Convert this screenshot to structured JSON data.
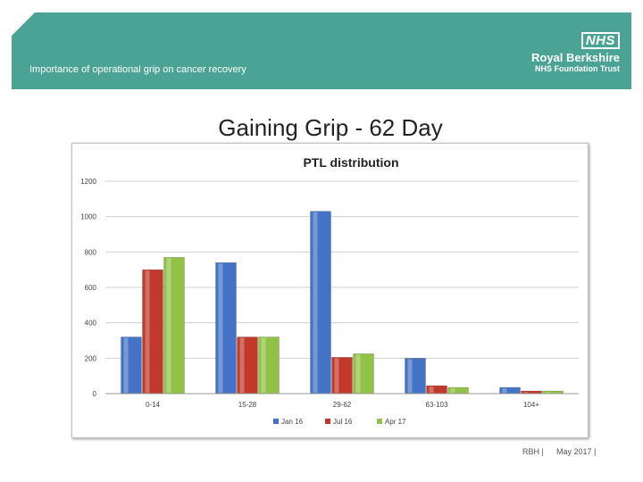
{
  "header": {
    "subtitle": "Importance of operational grip on cancer recovery",
    "logo_badge": "NHS",
    "logo_name": "Royal Berkshire",
    "logo_sub": "NHS Foundation Trust",
    "banner_color": "#4aa394"
  },
  "slide": {
    "title": "Gaining Grip - 62 Day"
  },
  "chart_data": {
    "type": "bar",
    "title": "PTL distribution",
    "categories": [
      "0-14",
      "15-28",
      "29-62",
      "63-103",
      "104+"
    ],
    "series": [
      {
        "name": "Jan 16",
        "color": "#4472c4",
        "values": [
          320,
          740,
          1030,
          200,
          35
        ]
      },
      {
        "name": "Jul 16",
        "color": "#c0392b",
        "values": [
          700,
          320,
          205,
          45,
          15
        ]
      },
      {
        "name": "Apr 17",
        "color": "#92c147",
        "values": [
          770,
          320,
          225,
          35,
          15
        ]
      }
    ],
    "yticks": [
      0,
      200,
      400,
      600,
      800,
      1000,
      1200
    ],
    "ylim": [
      0,
      1200
    ],
    "xlabel": "",
    "ylabel": "",
    "grid": true,
    "legend": "bottom"
  },
  "footer": {
    "left": "RBH",
    "right": "May 2017"
  }
}
